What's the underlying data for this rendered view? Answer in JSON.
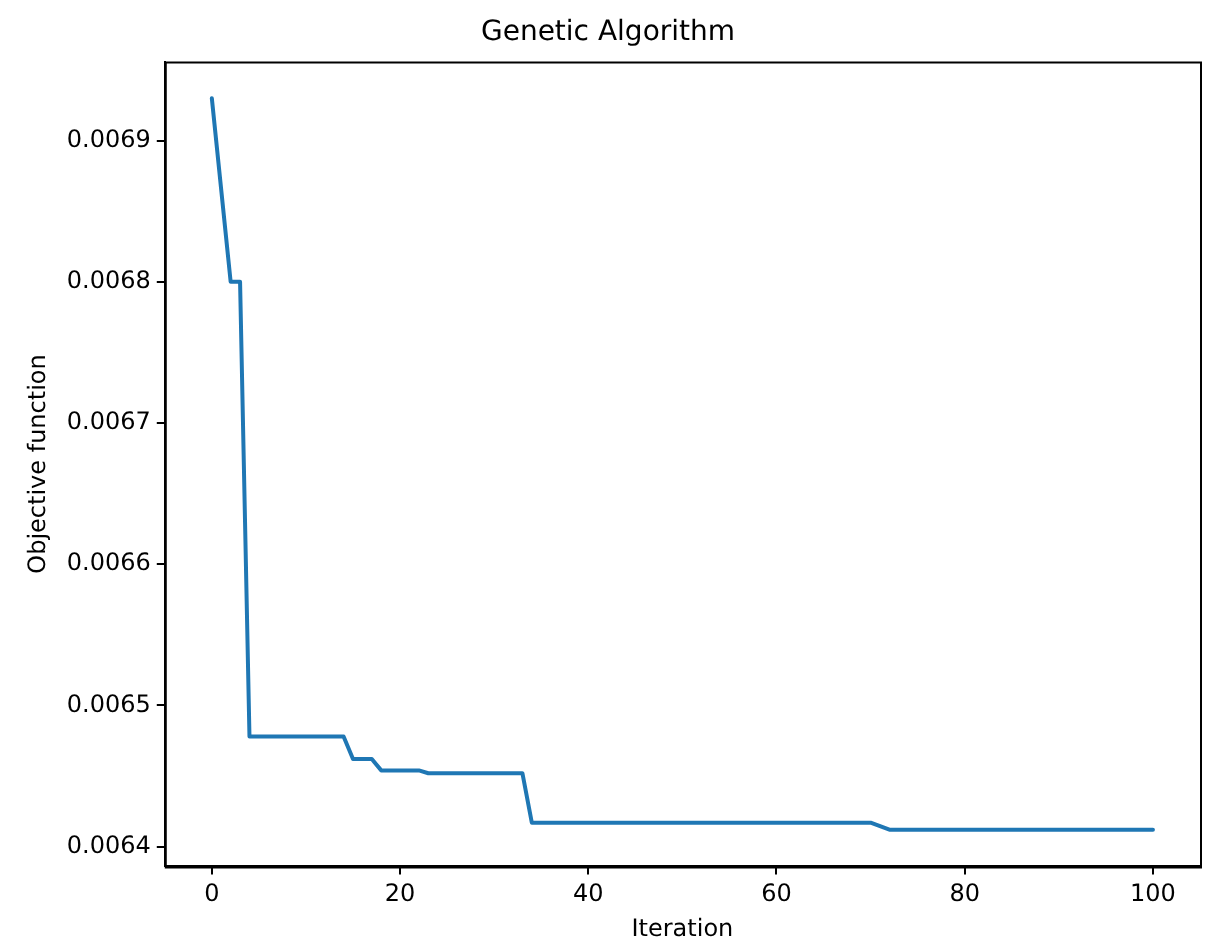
{
  "chart_data": {
    "type": "line",
    "title": "Genetic Algorithm",
    "xlabel": "Iteration",
    "ylabel": "Objective function",
    "x": [
      0,
      2,
      3,
      4,
      14,
      15,
      17,
      18,
      22,
      23,
      33,
      34,
      70,
      72,
      100
    ],
    "series": [
      {
        "color": "#1f77b4",
        "values": [
          0.00693,
          0.0068,
          0.0068,
          0.006478,
          0.006478,
          0.006462,
          0.006462,
          0.006454,
          0.006454,
          0.006452,
          0.006452,
          0.006417,
          0.006417,
          0.006412,
          0.006412
        ]
      }
    ],
    "xlim": [
      -5,
      105
    ],
    "xticks": [
      0,
      20,
      40,
      60,
      80,
      100
    ],
    "ylim": [
      0.006386,
      0.006956
    ],
    "yticks": [
      0.0064,
      0.0065,
      0.0066,
      0.0067,
      0.0068,
      0.0069
    ],
    "grid": false,
    "legend": false,
    "marker": "none",
    "line_style": "solid"
  }
}
